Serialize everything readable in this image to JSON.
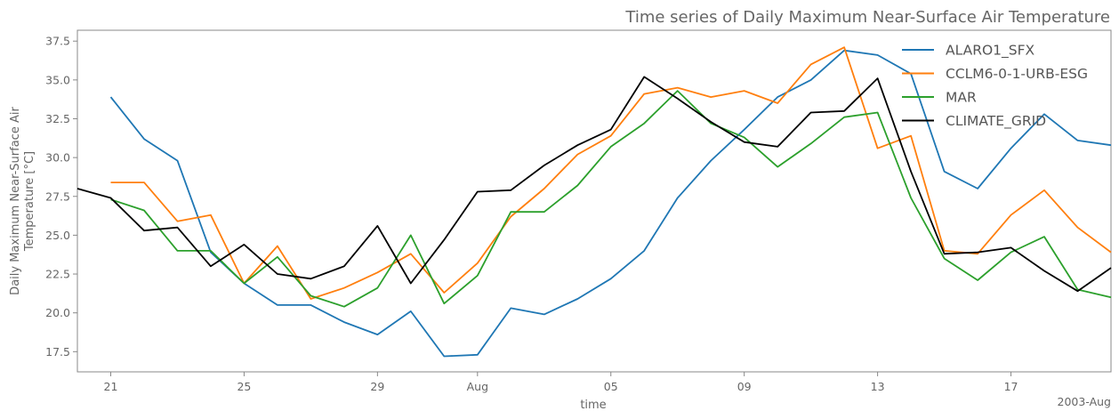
{
  "chart_data": {
    "type": "line",
    "title": "Time series of Daily Maximum Near-Surface Air Temperature",
    "xlabel": "time",
    "ylabel_lines": [
      "Daily Maximum Near-Surface Air",
      "Temperature [°C]"
    ],
    "x_offset_label": "2003-Aug",
    "x": [
      "2003-07-20",
      "2003-07-21",
      "2003-07-22",
      "2003-07-23",
      "2003-07-24",
      "2003-07-25",
      "2003-07-26",
      "2003-07-27",
      "2003-07-28",
      "2003-07-29",
      "2003-07-30",
      "2003-07-31",
      "2003-08-01",
      "2003-08-02",
      "2003-08-03",
      "2003-08-04",
      "2003-08-05",
      "2003-08-06",
      "2003-08-07",
      "2003-08-08",
      "2003-08-09",
      "2003-08-10",
      "2003-08-11",
      "2003-08-12",
      "2003-08-13",
      "2003-08-14",
      "2003-08-15",
      "2003-08-16",
      "2003-08-17",
      "2003-08-18",
      "2003-08-19",
      "2003-08-20"
    ],
    "xlim": [
      "2003-07-20",
      "2003-08-20"
    ],
    "ylim": [
      16.2,
      38.2
    ],
    "x_ticks": [
      {
        "date": "2003-07-21",
        "label": "21"
      },
      {
        "date": "2003-07-25",
        "label": "25"
      },
      {
        "date": "2003-07-29",
        "label": "29"
      },
      {
        "date": "2003-08-01",
        "label": "Aug"
      },
      {
        "date": "2003-08-05",
        "label": "05"
      },
      {
        "date": "2003-08-09",
        "label": "09"
      },
      {
        "date": "2003-08-13",
        "label": "13"
      },
      {
        "date": "2003-08-17",
        "label": "17"
      }
    ],
    "y_ticks": [
      17.5,
      20.0,
      22.5,
      25.0,
      27.5,
      30.0,
      32.5,
      35.0,
      37.5
    ],
    "y_tick_labels": [
      "17.5",
      "20.0",
      "22.5",
      "25.0",
      "27.5",
      "30.0",
      "32.5",
      "35.0",
      "37.5"
    ],
    "grid": false,
    "legend_position": "top-right",
    "series": [
      {
        "name": "ALARO1_SFX",
        "color": "#1f77b4",
        "values": [
          null,
          33.9,
          31.2,
          29.8,
          23.9,
          21.9,
          20.5,
          20.5,
          19.4,
          18.6,
          20.1,
          17.2,
          17.3,
          20.3,
          19.9,
          20.9,
          22.2,
          24.0,
          27.4,
          29.8,
          31.8,
          33.9,
          35.0,
          36.9,
          36.6,
          35.4,
          29.1,
          28.0,
          30.6,
          32.8,
          31.1,
          30.8
        ]
      },
      {
        "name": "CCLM6-0-1-URB-ESG",
        "color": "#ff7f0e",
        "values": [
          null,
          28.4,
          28.4,
          25.9,
          26.3,
          21.9,
          24.3,
          20.9,
          21.6,
          22.6,
          23.8,
          21.3,
          23.2,
          26.2,
          28.0,
          30.2,
          31.4,
          34.1,
          34.5,
          33.9,
          34.3,
          33.5,
          36.0,
          37.1,
          30.6,
          31.4,
          24.0,
          23.8,
          26.3,
          27.9,
          25.5,
          23.9
        ]
      },
      {
        "name": "MAR",
        "color": "#2ca02c",
        "values": [
          null,
          27.3,
          26.6,
          24.0,
          24.0,
          21.9,
          23.6,
          21.1,
          20.4,
          21.6,
          25.0,
          20.6,
          22.4,
          26.5,
          26.5,
          28.2,
          30.7,
          32.2,
          34.3,
          32.2,
          31.3,
          29.4,
          30.9,
          32.6,
          32.9,
          27.4,
          23.5,
          22.1,
          23.9,
          24.9,
          21.5,
          21.0
        ]
      },
      {
        "name": "CLIMATE_GRID",
        "color": "#000000",
        "values": [
          28.0,
          27.4,
          25.3,
          25.5,
          23.0,
          24.4,
          22.5,
          22.2,
          23.0,
          25.6,
          21.9,
          24.7,
          27.8,
          27.9,
          29.5,
          30.8,
          31.8,
          35.2,
          33.8,
          32.3,
          31.0,
          30.7,
          32.9,
          33.0,
          35.1,
          29.1,
          23.8,
          23.9,
          24.2,
          22.7,
          21.4,
          22.9
        ]
      }
    ]
  }
}
